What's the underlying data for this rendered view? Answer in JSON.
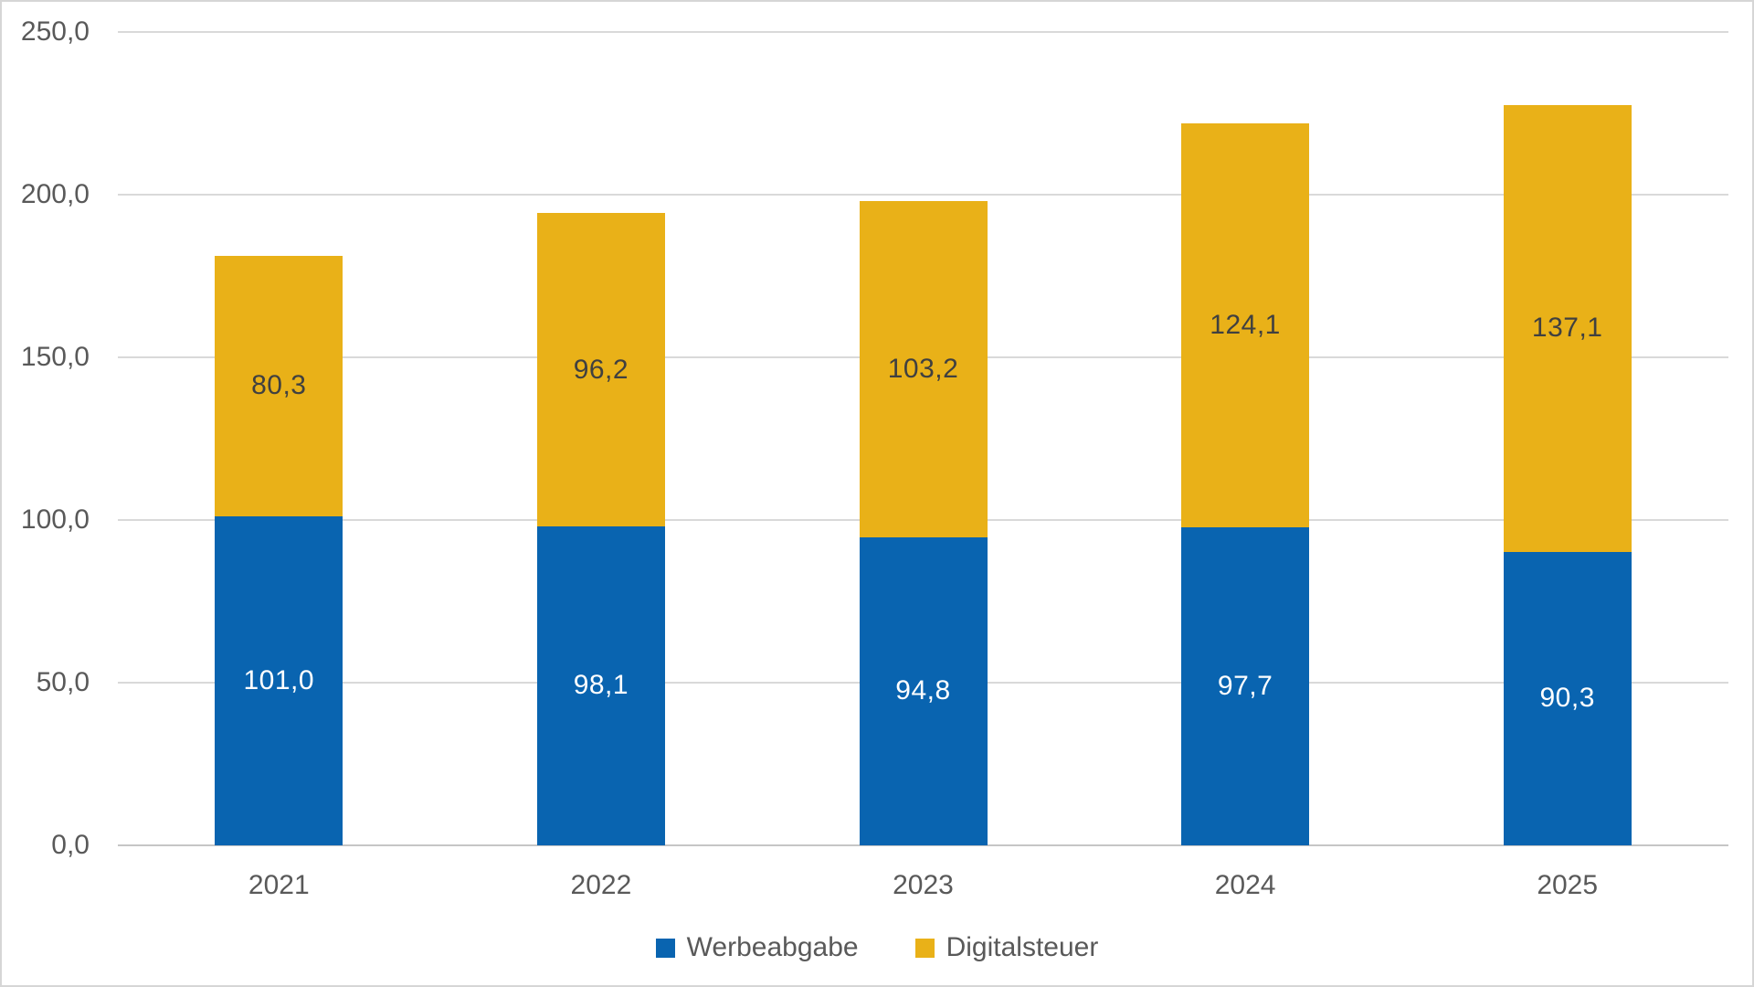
{
  "chart_data": {
    "type": "bar",
    "stacked": true,
    "title": "",
    "xlabel": "",
    "ylabel": "",
    "categories": [
      "2021",
      "2022",
      "2023",
      "2024",
      "2025"
    ],
    "series": [
      {
        "name": "Werbeabgabe",
        "color": "#0964B0",
        "label_color": "#FFFFFF",
        "values": [
          101.0,
          98.1,
          94.8,
          97.7,
          90.3
        ],
        "labels": [
          "101,0",
          "98,1",
          "94,8",
          "97,7",
          "90,3"
        ]
      },
      {
        "name": "Digitalsteuer",
        "color": "#E9B118",
        "label_color": "#404040",
        "values": [
          80.3,
          96.2,
          103.2,
          124.1,
          137.1
        ],
        "labels": [
          "80,3",
          "96,2",
          "103,2",
          "124,1",
          "137,1"
        ]
      }
    ],
    "ylim": [
      0,
      250
    ],
    "yticks": [
      {
        "value": 0,
        "label": "0,0"
      },
      {
        "value": 50,
        "label": "50,0"
      },
      {
        "value": 100,
        "label": "100,0"
      },
      {
        "value": 150,
        "label": "150,0"
      },
      {
        "value": 200,
        "label": "200,0"
      },
      {
        "value": 250,
        "label": "250,0"
      }
    ],
    "grid": true,
    "legend_position": "bottom",
    "number_format": "decimal-comma"
  },
  "colors": {
    "gridline": "#D9D9D9",
    "axis_line": "#C6C6C6",
    "axis_text": "#595959",
    "background": "#FFFFFF",
    "frame_border": "#D6D6D6"
  }
}
